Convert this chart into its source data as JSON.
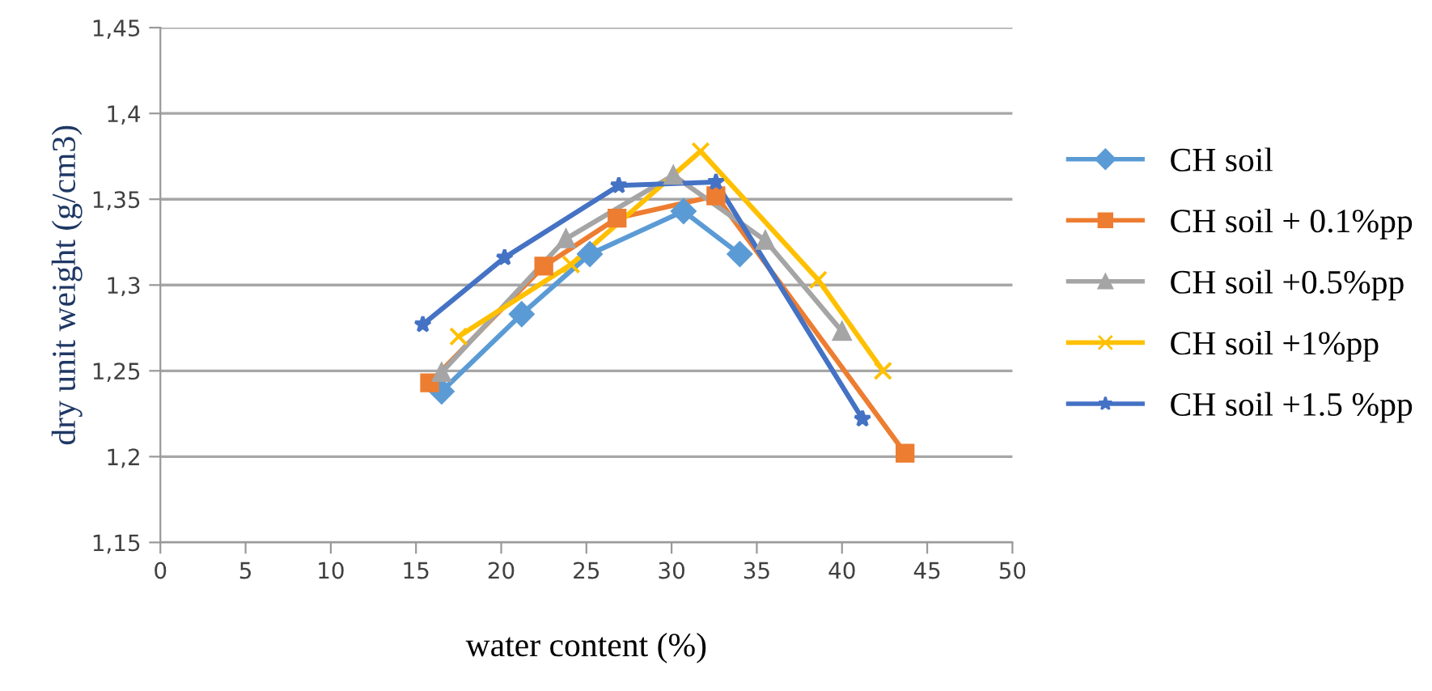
{
  "chart_data": {
    "type": "line",
    "xlabel": "water content (%)",
    "ylabel": "dry unit weight (g/cm3)",
    "xlim": [
      0,
      50
    ],
    "xticks": [
      0,
      5,
      10,
      15,
      20,
      25,
      30,
      35,
      40,
      45,
      50
    ],
    "ylim": [
      1.15,
      1.45
    ],
    "yticks": [
      {
        "value": 1.15,
        "label": "1,15"
      },
      {
        "value": 1.2,
        "label": "1,2"
      },
      {
        "value": 1.25,
        "label": "1,25"
      },
      {
        "value": 1.3,
        "label": "1,3"
      },
      {
        "value": 1.35,
        "label": "1,35"
      },
      {
        "value": 1.4,
        "label": "1,4"
      },
      {
        "value": 1.45,
        "label": "1,45"
      }
    ],
    "grid": "y",
    "legend": "right",
    "line_style": "solid",
    "series": [
      {
        "name": "CH soil",
        "color": "#5b9bd5",
        "marker": "diamond",
        "x": [
          16.5,
          21.2,
          25.2,
          30.7,
          34.0
        ],
        "values": [
          1.238,
          1.283,
          1.318,
          1.343,
          1.318
        ]
      },
      {
        "name": "CH soil + 0.1%pp",
        "color": "#ed7d31",
        "marker": "square",
        "x": [
          15.8,
          22.5,
          26.8,
          32.6,
          43.7
        ],
        "values": [
          1.243,
          1.311,
          1.339,
          1.352,
          1.202
        ]
      },
      {
        "name": "CH soil +0.5%pp",
        "color": "#a5a5a5",
        "marker": "triangle",
        "x": [
          16.5,
          23.8,
          30.1,
          35.5,
          40.0
        ],
        "values": [
          1.249,
          1.327,
          1.364,
          1.326,
          1.273
        ]
      },
      {
        "name": "CH soil +1%pp",
        "color": "#ffc000",
        "marker": "cross",
        "x": [
          17.5,
          24.1,
          31.7,
          38.6,
          42.4
        ],
        "values": [
          1.27,
          1.312,
          1.378,
          1.303,
          1.25
        ]
      },
      {
        "name": "CH soil +1.5 %pp",
        "color": "#4472c4",
        "marker": "star",
        "x": [
          15.4,
          20.2,
          26.9,
          32.6,
          41.2
        ],
        "values": [
          1.277,
          1.316,
          1.358,
          1.36,
          1.222
        ]
      }
    ]
  }
}
